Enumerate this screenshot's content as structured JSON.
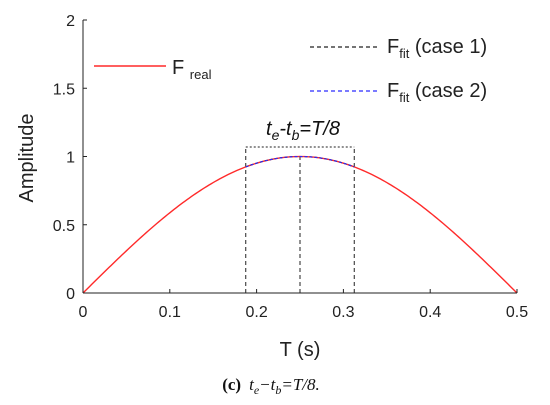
{
  "chart_data": {
    "type": "line",
    "title": "",
    "xlabel": "T (s)",
    "ylabel": "Amplitude",
    "xlim": [
      0,
      0.5
    ],
    "ylim": [
      0,
      2
    ],
    "xticks": [
      0,
      0.1,
      0.2,
      0.3,
      0.4,
      0.5
    ],
    "xtick_labels": [
      "0",
      "0.1",
      "0.2",
      "0.3",
      "0.4",
      "0.5"
    ],
    "yticks": [
      0,
      0.5,
      1,
      1.5,
      2
    ],
    "ytick_labels": [
      "0",
      "0.5",
      "1",
      "1.5",
      "2"
    ],
    "grid": false,
    "series": [
      {
        "name": "F_real",
        "legend_main": "F",
        "legend_sub": "real",
        "color": "#ff2a2a",
        "style": "solid",
        "function": "sin(2*pi*T)",
        "x": [
          0,
          0.025,
          0.05,
          0.075,
          0.1,
          0.125,
          0.15,
          0.175,
          0.2,
          0.225,
          0.25,
          0.275,
          0.3,
          0.325,
          0.35,
          0.375,
          0.4,
          0.425,
          0.45,
          0.475,
          0.5
        ],
        "y": [
          0,
          0.156,
          0.309,
          0.454,
          0.588,
          0.707,
          0.809,
          0.891,
          0.951,
          0.988,
          1.0,
          0.988,
          0.951,
          0.891,
          0.809,
          0.707,
          0.588,
          0.454,
          0.309,
          0.156,
          0
        ]
      },
      {
        "name": "F_fit (case 1)",
        "legend_main": "F",
        "legend_sub": "fit",
        "legend_suffix": " (case 1)",
        "color": "#222222",
        "style": "dashed",
        "x": [
          0.1875,
          0.25,
          0.3125
        ],
        "y": [
          0.924,
          1.0,
          0.924
        ]
      },
      {
        "name": "F_fit (case 2)",
        "legend_main": "F",
        "legend_sub": "fit",
        "legend_suffix": " (case 2)",
        "color": "#2a2aff",
        "style": "dashed",
        "x": [
          0.1875,
          0.25,
          0.3125
        ],
        "y": [
          0.924,
          1.0,
          0.924
        ]
      }
    ],
    "vertical_markers": [
      {
        "x": 0.1875,
        "from": 0,
        "to": 1.07
      },
      {
        "x": 0.25,
        "from": 0,
        "to": 1.0
      },
      {
        "x": 0.3125,
        "from": 0,
        "to": 1.07
      }
    ],
    "bracket": {
      "x_start": 0.1875,
      "x_end": 0.3125,
      "y": 1.07
    },
    "annotation": {
      "t1": "t",
      "s1": "e",
      "mid": "-t",
      "s2": "b",
      "tail": "=T/8",
      "x": 0.25,
      "y": 1.07
    },
    "legend_placement": [
      "upper-left",
      "upper-right"
    ]
  },
  "caption": {
    "label": "(c)",
    "t1": "t",
    "s1": "e",
    "mid": "−t",
    "s2": "b",
    "tail": "=T/8."
  }
}
